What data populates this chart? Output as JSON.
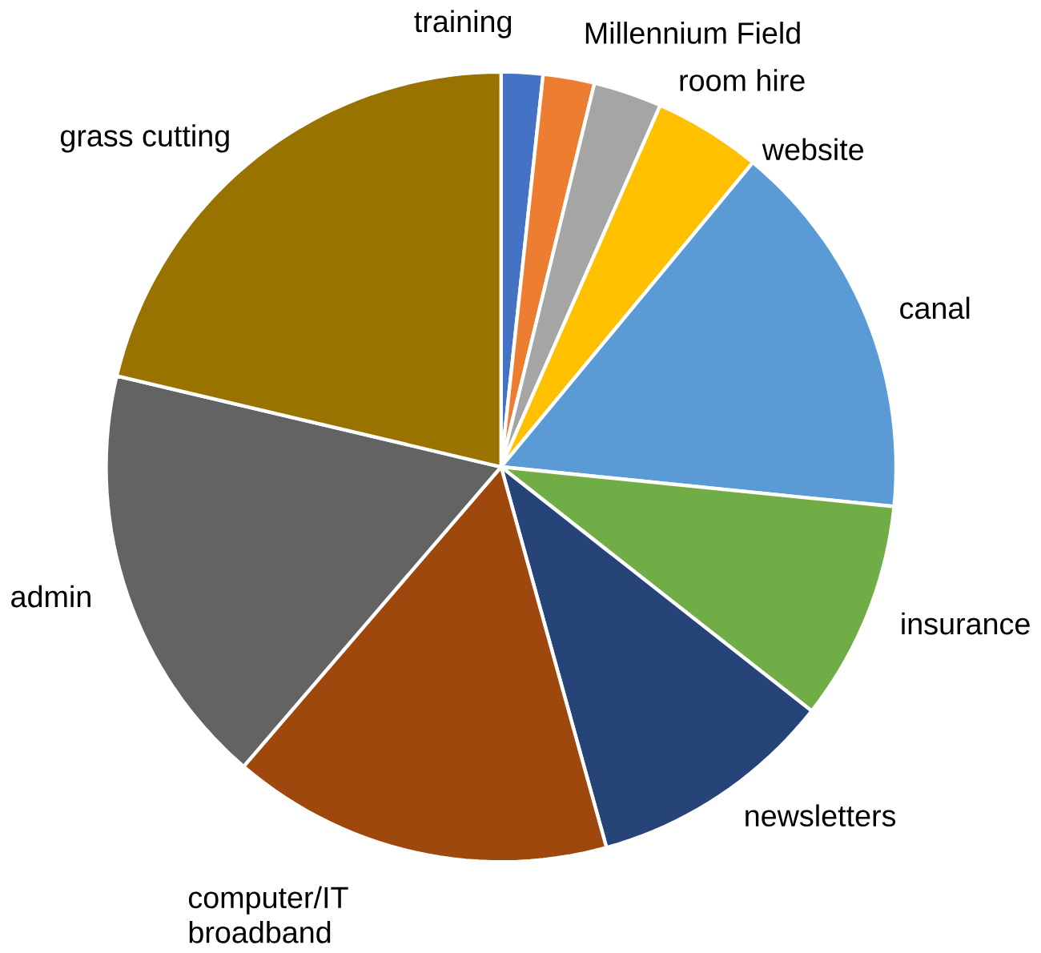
{
  "chart_data": {
    "type": "pie",
    "categories": [
      "training",
      "Millennium Field",
      "room hire",
      "website",
      "canal",
      "insurance",
      "newsletters",
      "computer/IT broadband",
      "admin",
      "grass cutting"
    ],
    "values": [
      1.7,
      2.1,
      2.8,
      4.4,
      15.6,
      9.0,
      10.1,
      15.6,
      17.4,
      21.3
    ],
    "colors": [
      "#4472c4",
      "#ed7d31",
      "#a5a5a5",
      "#ffc000",
      "#5b9bd5",
      "#70ad47",
      "#264478",
      "#9e480e",
      "#636363",
      "#997300"
    ]
  }
}
